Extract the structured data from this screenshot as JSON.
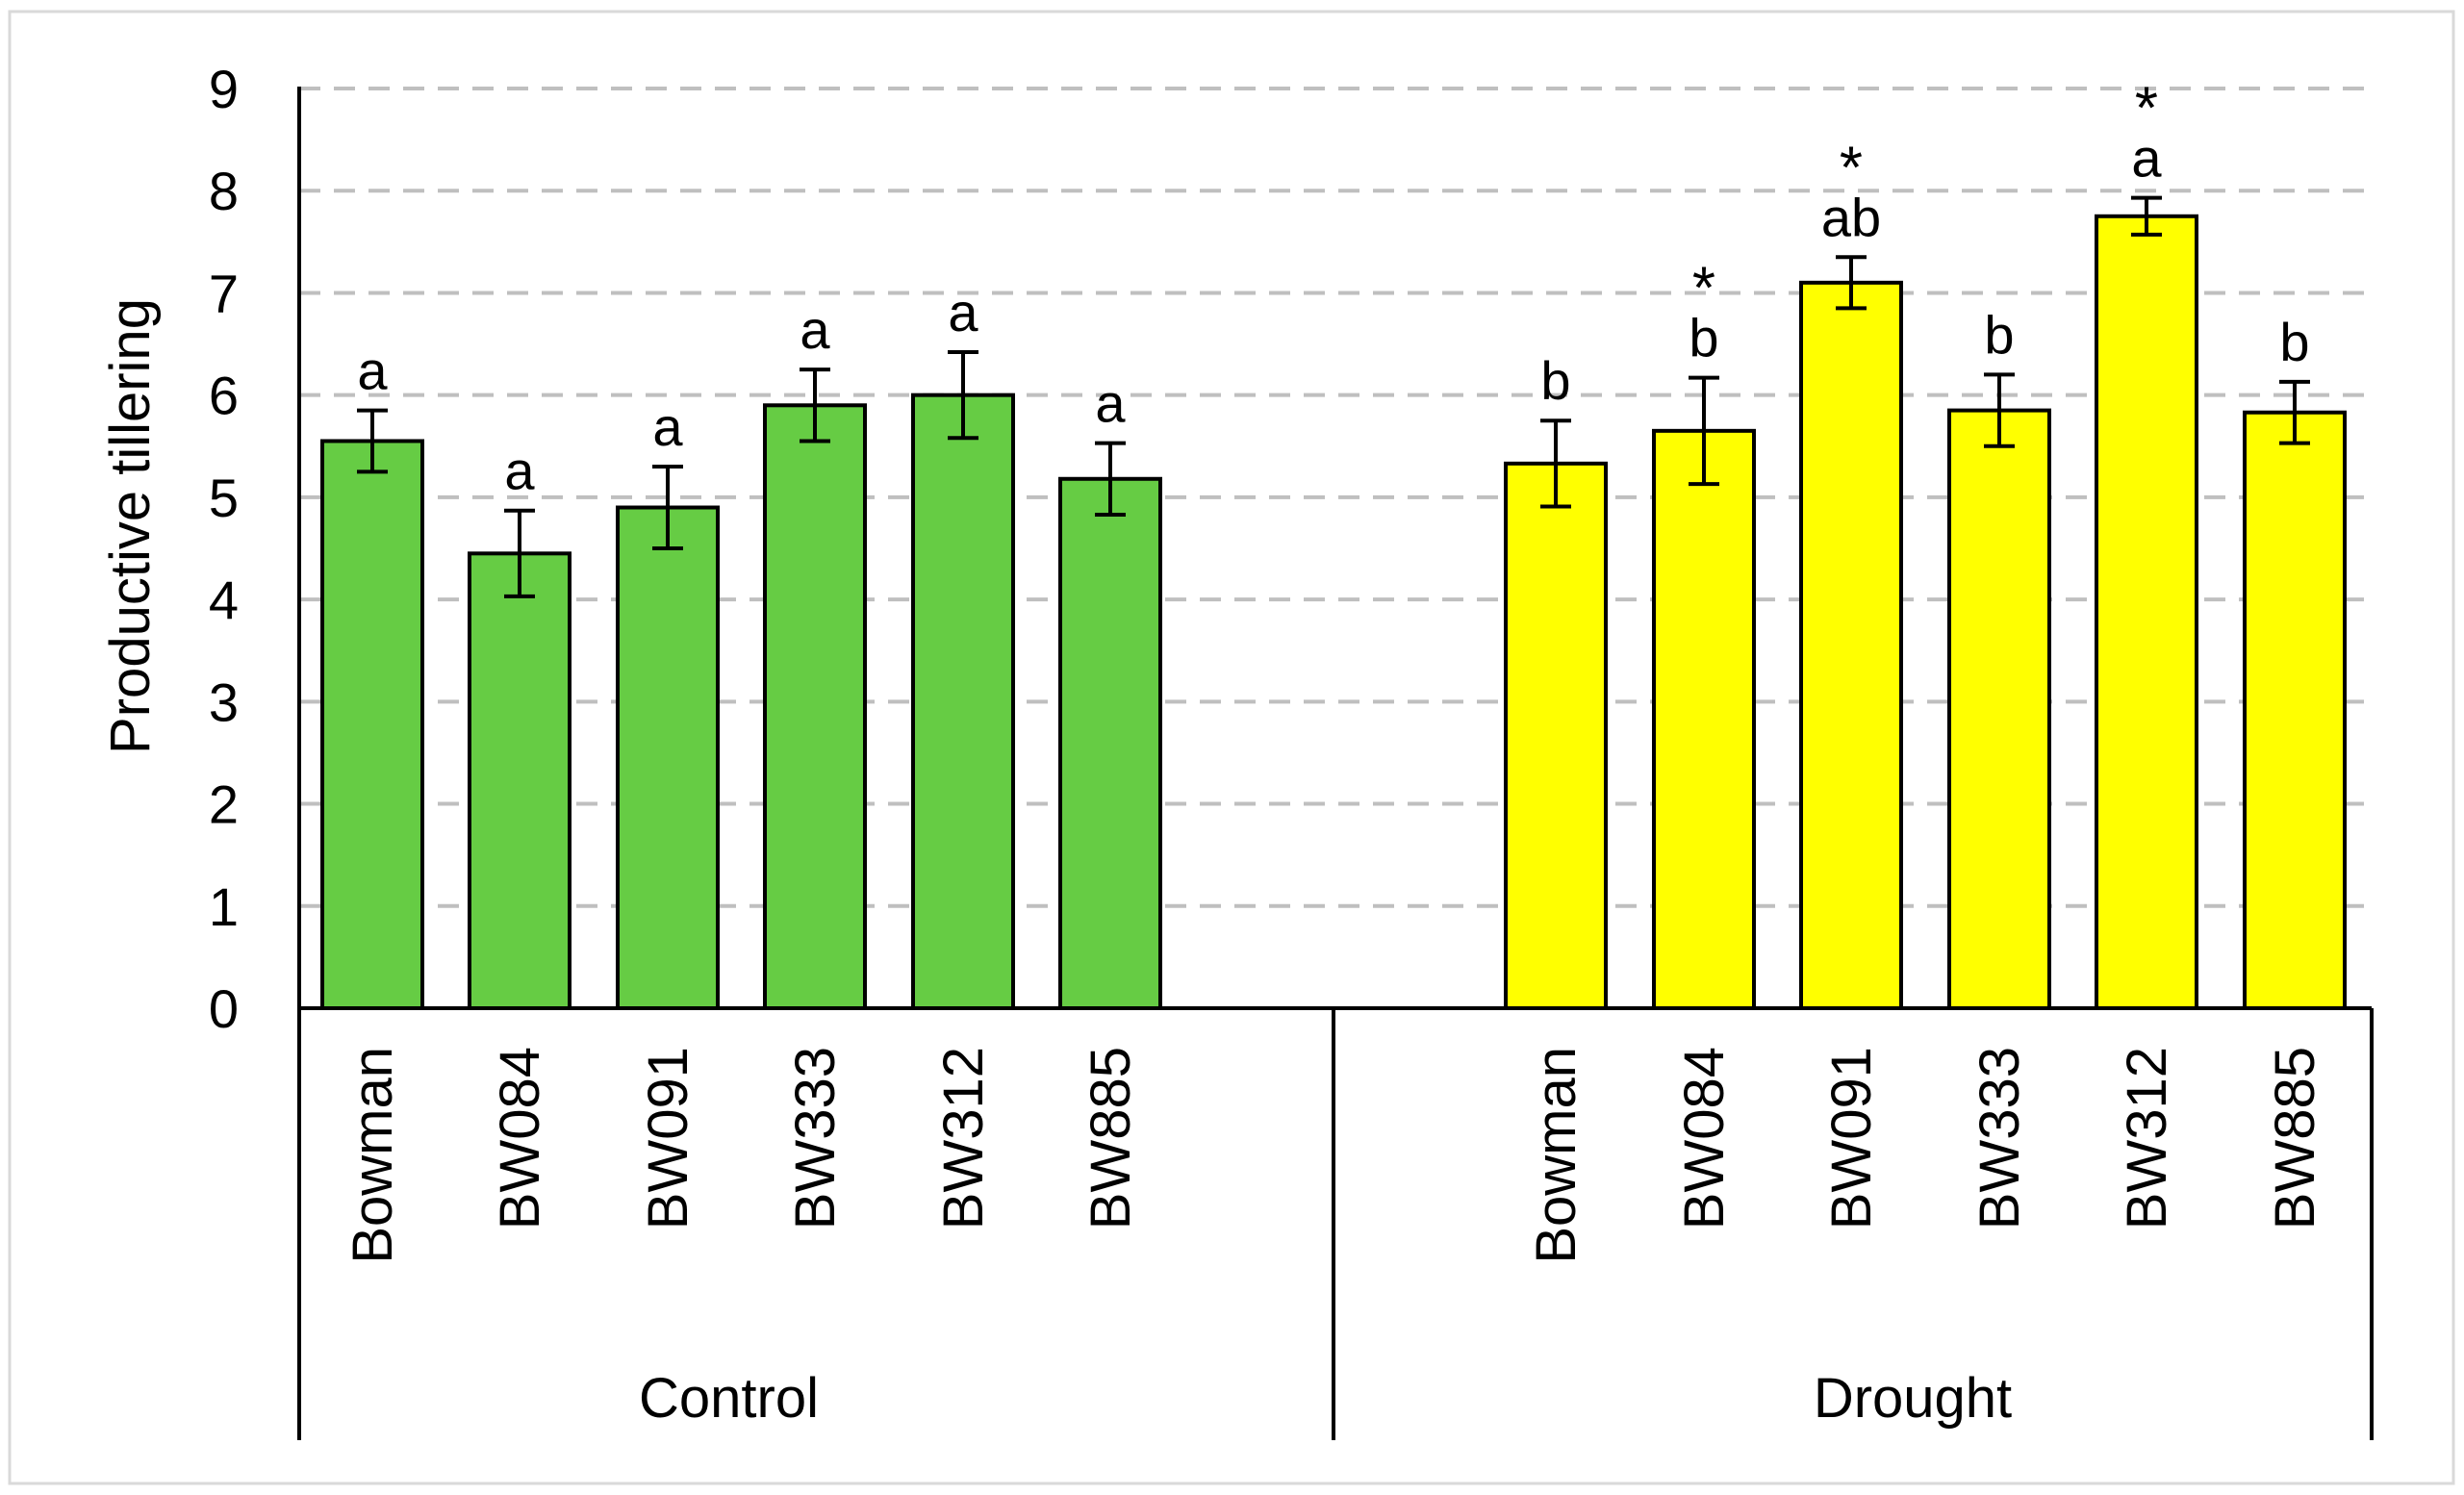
{
  "chart_data": {
    "type": "bar",
    "ylabel": "Productive tillering",
    "xlabel": "",
    "ylim": [
      0,
      9
    ],
    "yticks": [
      0,
      1,
      2,
      3,
      4,
      5,
      6,
      7,
      8,
      9
    ],
    "grid": "dashed horizontal",
    "groups": [
      {
        "name": "Control",
        "color": "#66CC44",
        "categories": [
          "Bowman",
          "BW084",
          "BW091",
          "BW333",
          "BW312",
          "BW885"
        ],
        "values": [
          5.55,
          4.45,
          4.9,
          5.9,
          6.0,
          5.18
        ],
        "errors": [
          0.3,
          0.42,
          0.4,
          0.35,
          0.42,
          0.35
        ],
        "letters": [
          "a",
          "a",
          "a",
          "a",
          "a",
          "a"
        ],
        "stars": [
          "",
          "",
          "",
          "",
          "",
          ""
        ]
      },
      {
        "name": "Drought",
        "color": "#FFFF00",
        "categories": [
          "Bowman",
          "BW084",
          "BW091",
          "BW333",
          "BW312",
          "BW885"
        ],
        "values": [
          5.33,
          5.65,
          7.1,
          5.85,
          7.75,
          5.83
        ],
        "errors": [
          0.42,
          0.52,
          0.25,
          0.35,
          0.18,
          0.3
        ],
        "letters": [
          "b",
          "b",
          "ab",
          "b",
          "a",
          "b"
        ],
        "stars": [
          "",
          "*",
          "*",
          "",
          "*",
          ""
        ]
      }
    ]
  }
}
